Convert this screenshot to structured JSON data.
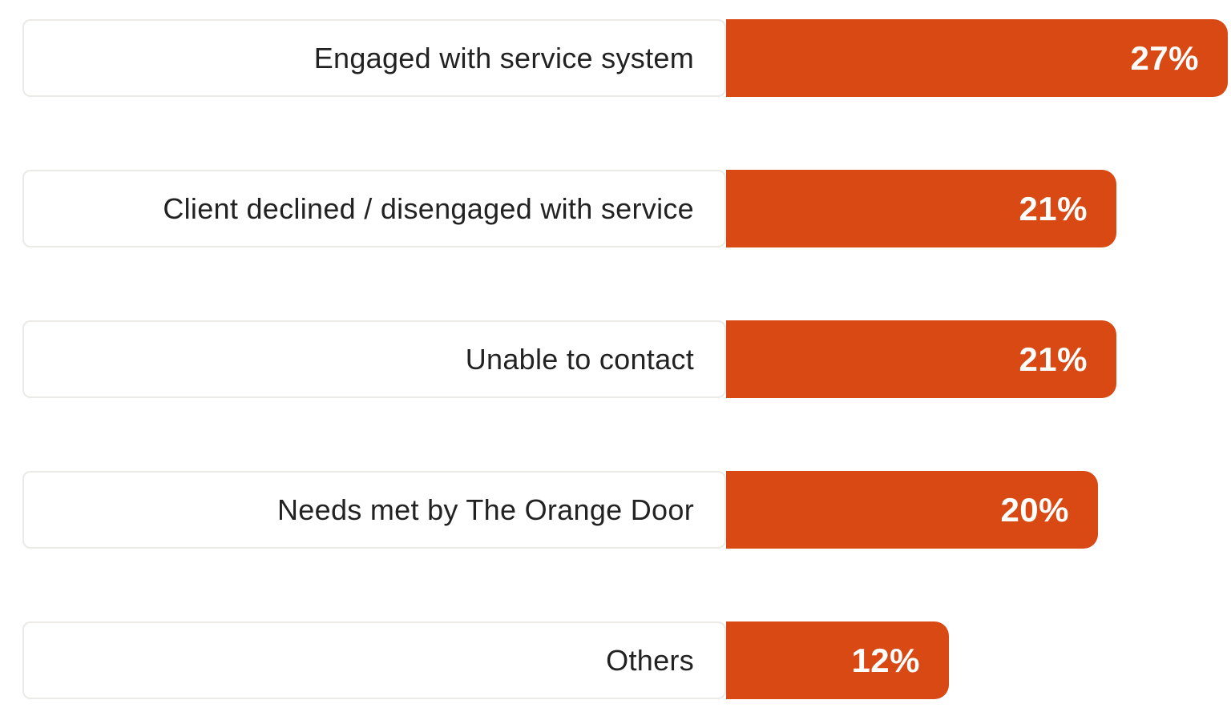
{
  "chart_data": {
    "type": "bar",
    "orientation": "horizontal",
    "title": "",
    "xlabel": "",
    "ylabel": "",
    "categories": [
      "Engaged with service system",
      "Client declined / disengaged with service",
      "Unable to contact",
      "Needs met by The Orange Door",
      "Others"
    ],
    "values": [
      27,
      21,
      21,
      20,
      12
    ],
    "value_labels": [
      "27%",
      "21%",
      "21%",
      "20%",
      "12%"
    ],
    "unit": "percent",
    "xlim": [
      0,
      27
    ],
    "grid": false,
    "legend": false,
    "axes_visible": false,
    "colors": {
      "bar": "#d94914",
      "value_text": "#ffffff",
      "label_text": "#222222",
      "label_box_bg": "#ffffff",
      "label_box_border": "#eceae7",
      "background": "#ffffff"
    }
  }
}
